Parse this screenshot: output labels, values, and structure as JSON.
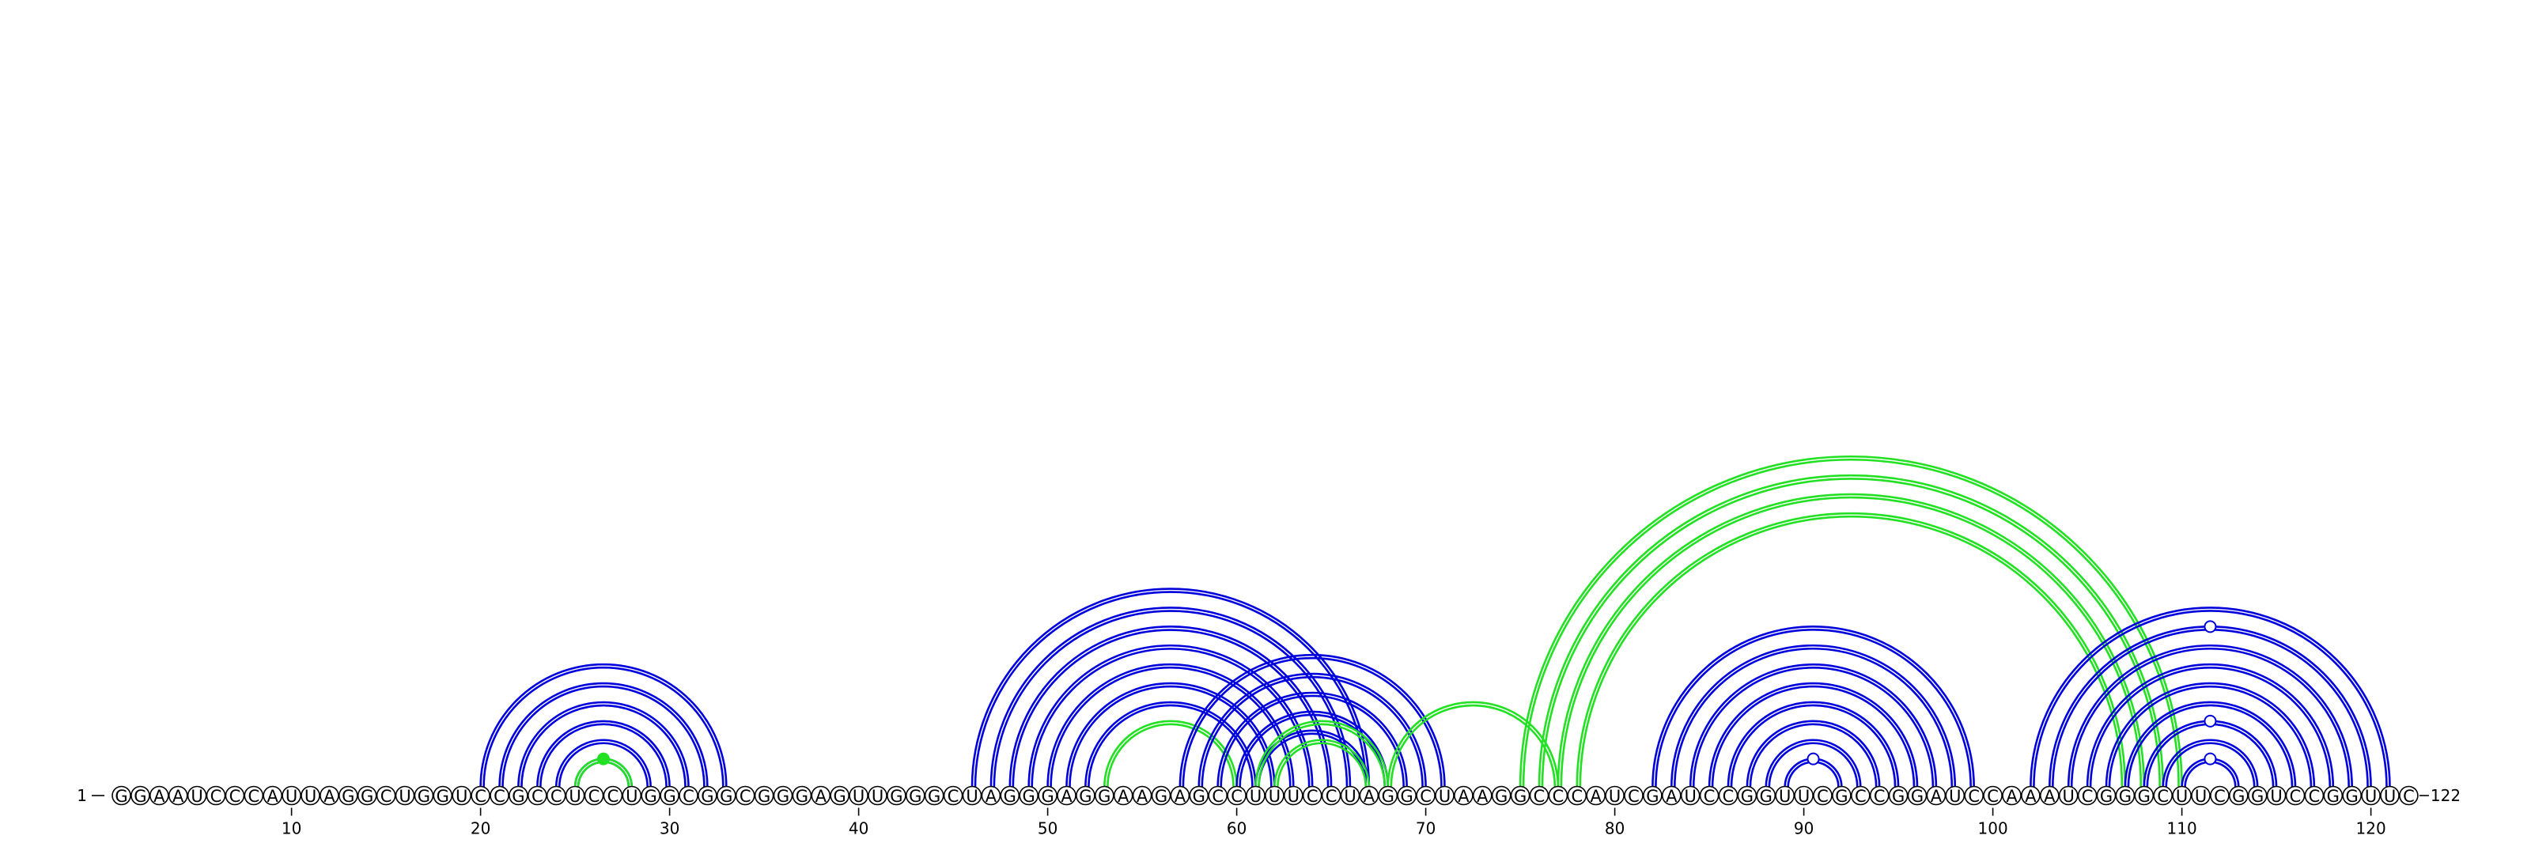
{
  "sequence": "GGAAUCCCAUUAGGCUGGUCCGCCUCCUGGCGGCGGGAGUUGGGCUAGGGAGGAAGAGCCUUUCCUAGGCUAAGGCCCAUCGAUCCGGUUCGCCGGAUCCAAAUCGGGCUUCGGUCCGGUUC",
  "start_label": "1",
  "end_label": "122",
  "tick_labels": [
    "10",
    "20",
    "30",
    "40",
    "50",
    "60",
    "70",
    "80",
    "90",
    "100",
    "110",
    "120"
  ],
  "colors": {
    "primary_arcs": "#0000dd",
    "secondary_arcs": "#22e022",
    "nucleotide_stroke": "#000000"
  },
  "helices": [
    {
      "color": "primary",
      "pairs": [
        [
          20,
          33
        ],
        [
          21,
          32
        ],
        [
          22,
          31
        ],
        [
          23,
          30
        ],
        [
          24,
          29
        ],
        [
          25,
          28
        ]
      ]
    },
    {
      "color": "secondary",
      "pairs": [
        [
          25,
          28
        ]
      ]
    },
    {
      "color": "primary",
      "pairs": [
        [
          46,
          67
        ],
        [
          47,
          66
        ],
        [
          48,
          65
        ],
        [
          49,
          64
        ],
        [
          50,
          63
        ]
      ]
    },
    {
      "color": "primary",
      "pairs": [
        [
          51,
          62
        ],
        [
          52,
          61
        ]
      ]
    },
    {
      "color": "secondary",
      "pairs": [
        [
          53,
          60
        ]
      ]
    },
    {
      "color": "primary",
      "pairs": [
        [
          57,
          71
        ],
        [
          58,
          70
        ],
        [
          59,
          69
        ],
        [
          60,
          68
        ],
        [
          61,
          67
        ]
      ]
    },
    {
      "color": "secondary",
      "pairs": [
        [
          61,
          68
        ],
        [
          62,
          67
        ]
      ]
    },
    {
      "color": "secondary",
      "pairs": [
        [
          68,
          77
        ]
      ]
    },
    {
      "color": "secondary",
      "pairs": [
        [
          75,
          110
        ],
        [
          76,
          109
        ],
        [
          77,
          108
        ],
        [
          78,
          107
        ]
      ]
    },
    {
      "color": "primary",
      "pairs": [
        [
          82,
          99
        ],
        [
          83,
          98
        ],
        [
          84,
          97
        ],
        [
          85,
          96
        ],
        [
          86,
          95
        ],
        [
          87,
          94
        ],
        [
          88,
          93
        ],
        [
          89,
          92
        ]
      ]
    },
    {
      "color": "primary",
      "pairs": [
        [
          102,
          121
        ],
        [
          103,
          120
        ],
        [
          104,
          119
        ],
        [
          105,
          118
        ],
        [
          106,
          117
        ],
        [
          107,
          116
        ],
        [
          108,
          115
        ],
        [
          109,
          114
        ],
        [
          110,
          113
        ]
      ]
    }
  ],
  "loop_markers": [
    {
      "color": "secondary",
      "filled": true,
      "position": 26.5,
      "pair": [
        25,
        28
      ]
    },
    {
      "color": "primary",
      "filled": false,
      "position": 90.5,
      "pair": [
        89,
        92
      ]
    },
    {
      "color": "primary",
      "filled": false,
      "position": 111.5,
      "pair": [
        110,
        113
      ]
    },
    {
      "color": "primary",
      "filled": false,
      "position": 111.5,
      "pair": [
        108,
        115
      ]
    },
    {
      "color": "primary",
      "filled": false,
      "position": 111.5,
      "pair": [
        103,
        120
      ]
    }
  ]
}
